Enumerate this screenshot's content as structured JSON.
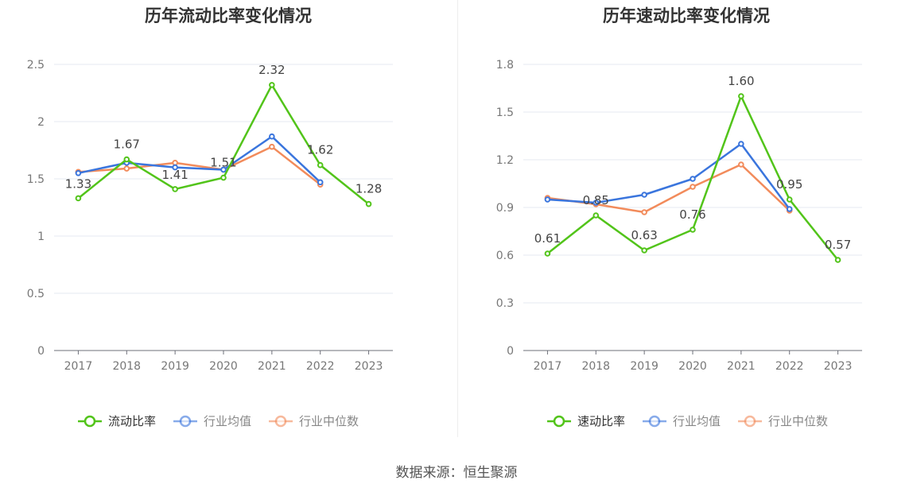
{
  "footer": {
    "source_label": "数据来源：",
    "source_value": "恒生聚源"
  },
  "legend_colors": {
    "primary": "#52c41a",
    "industry_avg": "#3a75dd",
    "industry_median": "#f28b5b"
  },
  "chart_data": [
    {
      "type": "line",
      "title": "历年流动比率变化情况",
      "categories": [
        "2017",
        "2018",
        "2019",
        "2020",
        "2021",
        "2022",
        "2023"
      ],
      "y_ticks": [
        "0",
        "0.5",
        "1",
        "1.5",
        "2",
        "2.5"
      ],
      "ylim": [
        0,
        2.5
      ],
      "grid": true,
      "legend_position": "bottom",
      "series": [
        {
          "name": "流动比率",
          "color": "#52c41a",
          "values": [
            1.33,
            1.67,
            1.41,
            1.51,
            2.32,
            1.62,
            1.28
          ],
          "labels": [
            "1.33",
            "1.67",
            "1.41",
            "1.51",
            "2.32",
            "1.62",
            "1.28"
          ]
        },
        {
          "name": "行业均值",
          "color": "#3a75dd",
          "values": [
            1.55,
            1.64,
            1.6,
            1.58,
            1.87,
            1.47,
            null
          ]
        },
        {
          "name": "行业中位数",
          "color": "#f28b5b",
          "values": [
            1.56,
            1.59,
            1.64,
            1.58,
            1.78,
            1.45,
            null
          ]
        }
      ]
    },
    {
      "type": "line",
      "title": "历年速动比率变化情况",
      "categories": [
        "2017",
        "2018",
        "2019",
        "2020",
        "2021",
        "2022",
        "2023"
      ],
      "y_ticks": [
        "0",
        "0.3",
        "0.6",
        "0.9",
        "1.2",
        "1.5",
        "1.8"
      ],
      "ylim": [
        0,
        1.8
      ],
      "grid": true,
      "legend_position": "bottom",
      "series": [
        {
          "name": "速动比率",
          "color": "#52c41a",
          "values": [
            0.61,
            0.85,
            0.63,
            0.76,
            1.6,
            0.95,
            0.57
          ],
          "labels": [
            "0.61",
            "0.85",
            "0.63",
            "0.76",
            "1.60",
            "0.95",
            "0.57"
          ]
        },
        {
          "name": "行业均值",
          "color": "#3a75dd",
          "values": [
            0.95,
            0.93,
            0.98,
            1.08,
            1.3,
            0.89,
            null
          ]
        },
        {
          "name": "行业中位数",
          "color": "#f28b5b",
          "values": [
            0.96,
            0.92,
            0.87,
            1.03,
            1.17,
            0.88,
            null
          ]
        }
      ]
    }
  ]
}
